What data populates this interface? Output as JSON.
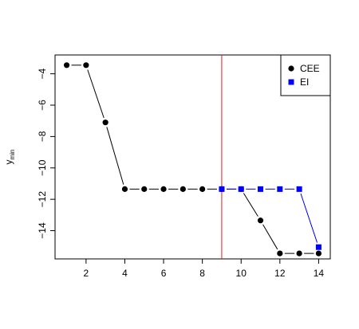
{
  "chart_data": {
    "type": "line",
    "title": "",
    "xlabel": "",
    "ylabel": "y",
    "ylabel_subscript": "min",
    "xlim": [
      0.4,
      14.6
    ],
    "ylim": [
      -15.8,
      -2.8
    ],
    "x_ticks": [
      2,
      4,
      6,
      8,
      10,
      12,
      14
    ],
    "y_ticks": [
      -4,
      -6,
      -8,
      -10,
      -12,
      -14
    ],
    "vline": {
      "x": 9,
      "color": "#e41a1c"
    },
    "legend": {
      "placement": "top-right"
    },
    "series": [
      {
        "name": "CEE",
        "color": "#000000",
        "marker": "circle",
        "x": [
          1,
          2,
          3,
          4,
          5,
          6,
          7,
          8,
          9,
          10,
          11,
          12,
          13,
          14
        ],
        "y": [
          -3.45,
          -3.45,
          -7.1,
          -11.35,
          -11.35,
          -11.35,
          -11.35,
          -11.35,
          -11.35,
          -11.35,
          -13.35,
          -15.45,
          -15.45,
          -15.45
        ]
      },
      {
        "name": "EI",
        "color": "#0000ff",
        "marker": "square",
        "x": [
          9,
          10,
          11,
          12,
          13,
          14
        ],
        "y": [
          -11.35,
          -11.35,
          -11.35,
          -11.35,
          -11.35,
          -15.05
        ]
      }
    ]
  }
}
